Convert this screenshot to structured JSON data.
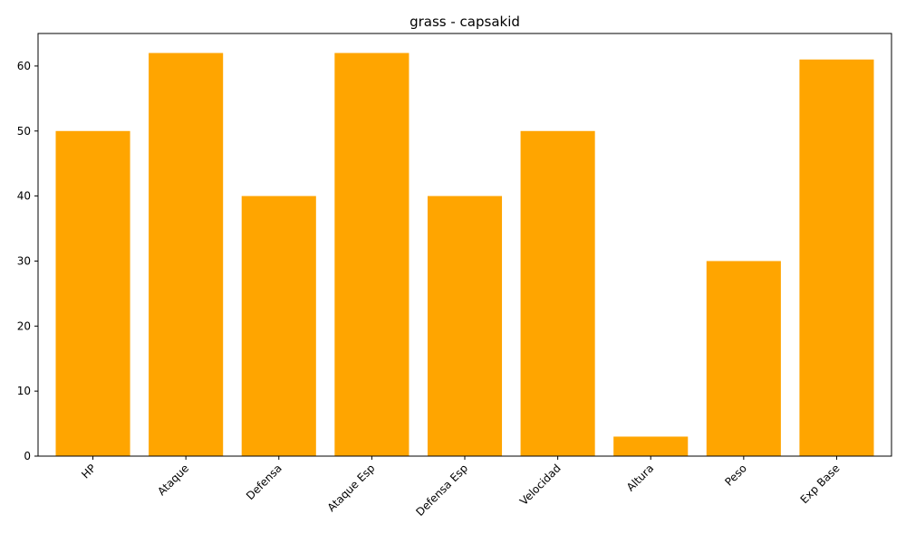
{
  "chart_data": {
    "type": "bar",
    "title": "grass - capsakid",
    "xlabel": "",
    "ylabel": "",
    "categories": [
      "HP",
      "Ataque",
      "Defensa",
      "Ataque Esp",
      "Defensa Esp",
      "Velocidad",
      "Altura",
      "Peso",
      "Exp Base"
    ],
    "values": [
      50,
      62,
      40,
      62,
      40,
      50,
      3,
      30,
      61
    ],
    "ylim": [
      0,
      65
    ],
    "yticks": [
      0,
      10,
      20,
      30,
      40,
      50,
      60
    ],
    "bar_color": "#ffa500",
    "x_tick_rotation": "45 degrees",
    "grid": false,
    "legend": "none"
  }
}
